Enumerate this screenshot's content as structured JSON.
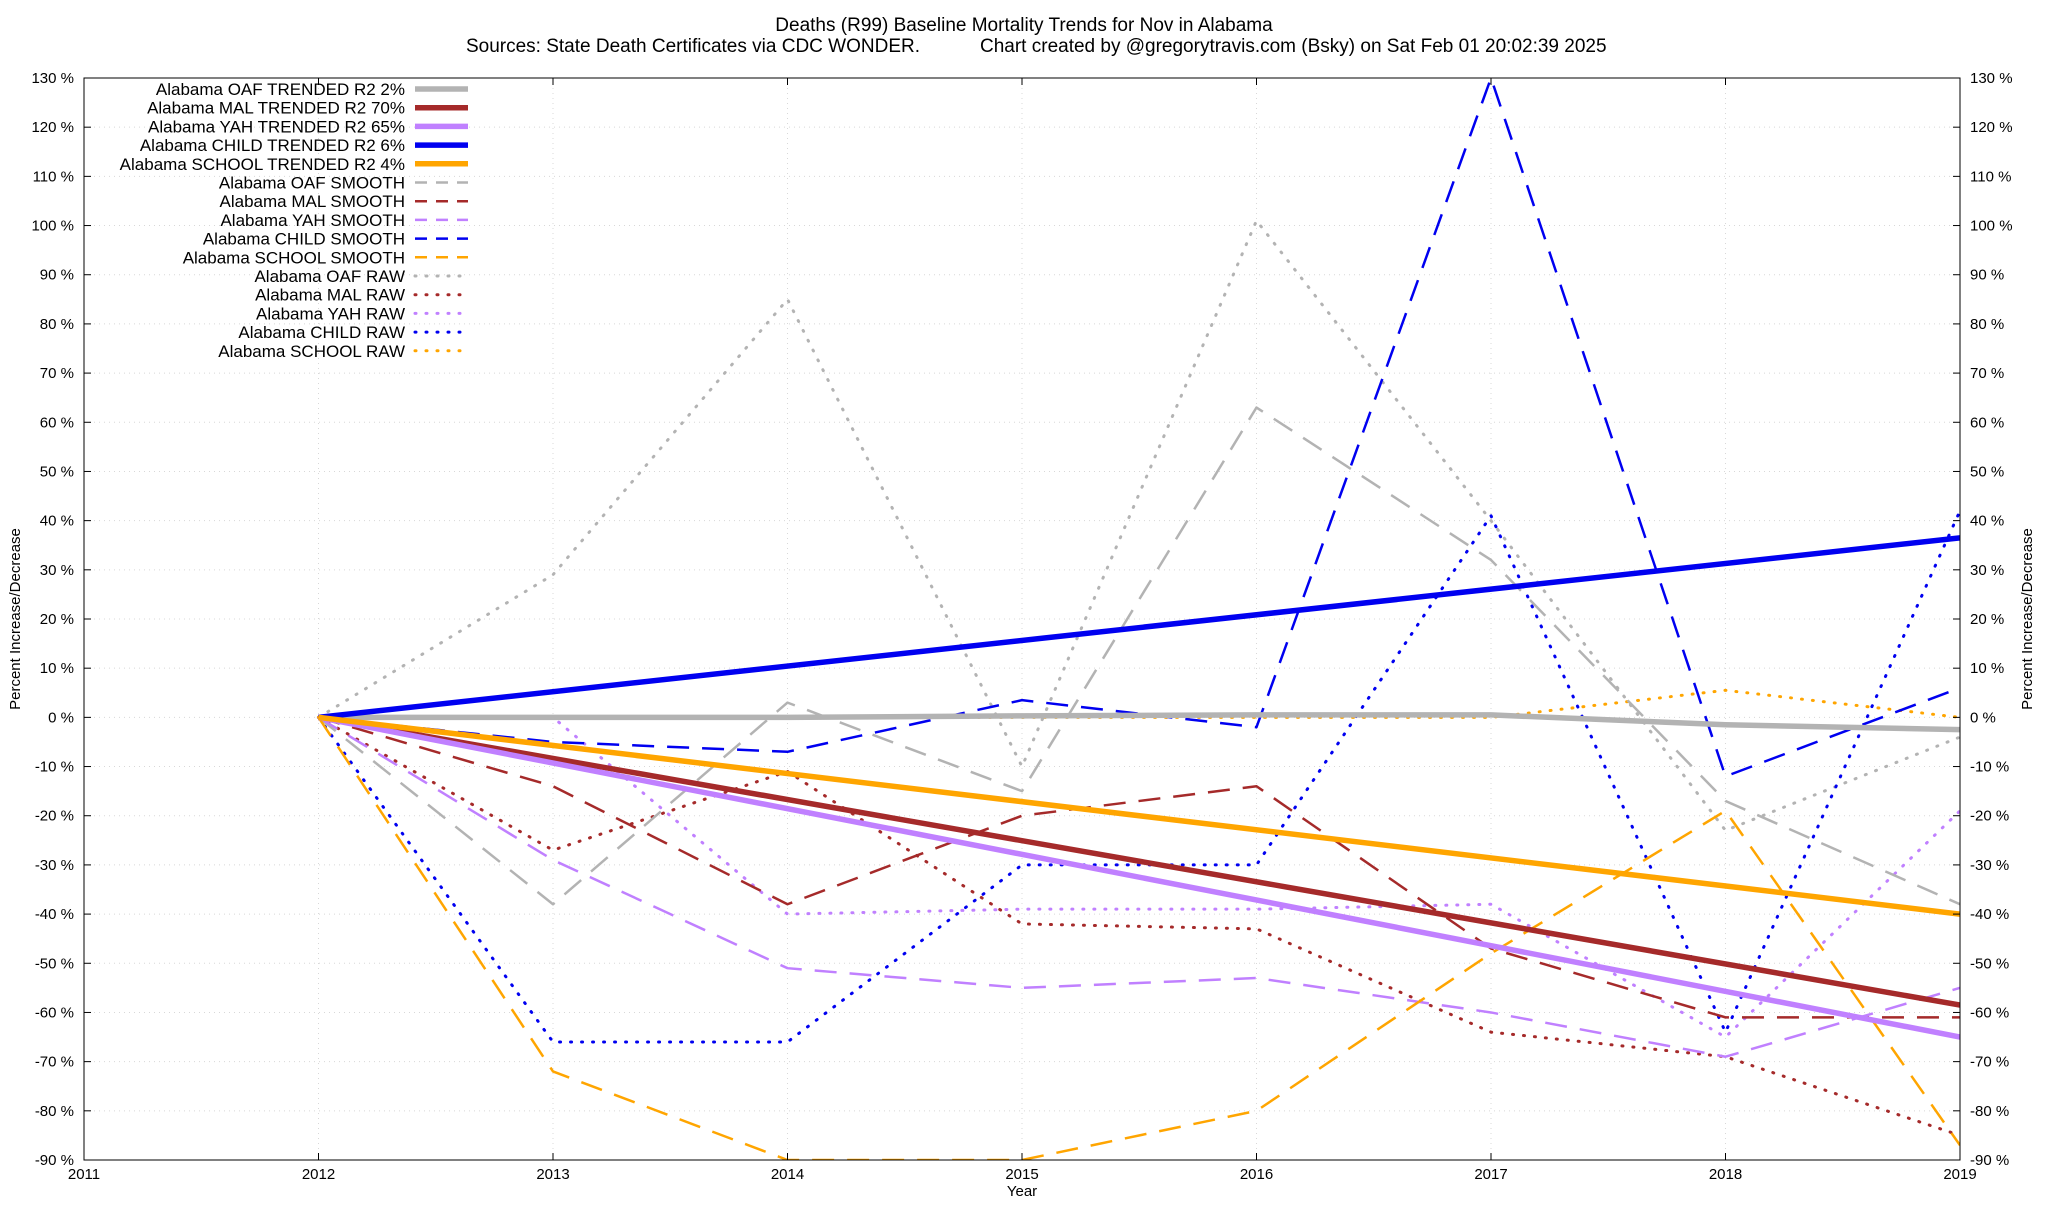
{
  "chart_data": {
    "type": "line",
    "title": "Deaths (R99)  Baseline Mortality Trends for Nov in Alabama",
    "subtitle_left": "Sources: State Death Certificates via CDC WONDER.",
    "subtitle_right": "Chart created by @gregorytravis.com (Bsky) on Sat Feb 01 20:02:39 2025",
    "xlabel": "Year",
    "ylabel": "Percent Increase/Decrease",
    "ylabel_right": "Percent Increase/Decrease",
    "xlim": [
      2011,
      2019
    ],
    "ylim": [
      -90,
      130
    ],
    "x_ticks": [
      2011,
      2012,
      2013,
      2014,
      2015,
      2016,
      2017,
      2018,
      2019
    ],
    "y_ticks": [
      -90,
      -80,
      -70,
      -60,
      -50,
      -40,
      -30,
      -20,
      -10,
      0,
      10,
      20,
      30,
      40,
      50,
      60,
      70,
      80,
      90,
      100,
      110,
      120,
      130
    ],
    "y_tick_suffix": " %",
    "grid": true,
    "legend_position": "top-left",
    "colors": {
      "oaf": "#b3b3b3",
      "mal": "#a52a2a",
      "yah": "#c080ff",
      "child": "#0000f0",
      "school": "#ffa500"
    },
    "series": [
      {
        "name": "Alabama OAF TRENDED R2  2%",
        "style": "trend",
        "color_key": "oaf",
        "x": [
          2012,
          2013,
          2014,
          2015,
          2016,
          2017,
          2018,
          2019
        ],
        "y": [
          0,
          0,
          0,
          0.3,
          0.5,
          0.5,
          -1.5,
          -2.5
        ]
      },
      {
        "name": "Alabama MAL TRENDED R2  70%",
        "style": "trend",
        "color_key": "mal",
        "x": [
          2012,
          2019
        ],
        "y": [
          0,
          -58.5
        ]
      },
      {
        "name": "Alabama YAH TRENDED R2  65%",
        "style": "trend",
        "color_key": "yah",
        "x": [
          2012,
          2019
        ],
        "y": [
          0,
          -65
        ]
      },
      {
        "name": "Alabama CHILD TRENDED R2  6%",
        "style": "trend",
        "color_key": "child",
        "x": [
          2012,
          2019
        ],
        "y": [
          0,
          36.5
        ]
      },
      {
        "name": "Alabama SCHOOL TRENDED R2  4%",
        "style": "trend",
        "color_key": "school",
        "x": [
          2012,
          2019
        ],
        "y": [
          0,
          -40
        ]
      },
      {
        "name": "Alabama OAF SMOOTH",
        "style": "smooth",
        "color_key": "oaf",
        "x": [
          2012,
          2013,
          2014,
          2015,
          2016,
          2017,
          2018,
          2019
        ],
        "y": [
          0,
          -38,
          3,
          -15,
          63,
          32,
          -17,
          -38
        ]
      },
      {
        "name": "Alabama MAL SMOOTH",
        "style": "smooth",
        "color_key": "mal",
        "x": [
          2012,
          2013,
          2014,
          2015,
          2016,
          2017,
          2018,
          2019
        ],
        "y": [
          0,
          -14,
          -38,
          -20,
          -14,
          -47,
          -61,
          -61
        ]
      },
      {
        "name": "Alabama YAH SMOOTH",
        "style": "smooth",
        "color_key": "yah",
        "x": [
          2012,
          2013,
          2014,
          2015,
          2016,
          2017,
          2018,
          2019
        ],
        "y": [
          0,
          -29,
          -51,
          -55,
          -53,
          -60,
          -69,
          -55
        ]
      },
      {
        "name": "Alabama CHILD SMOOTH",
        "style": "smooth",
        "color_key": "child",
        "x": [
          2012,
          2013,
          2014,
          2015,
          2016,
          2017,
          2018,
          2019
        ],
        "y": [
          0,
          -5,
          -7,
          3.5,
          -2,
          130,
          -12,
          6
        ]
      },
      {
        "name": "Alabama SCHOOL SMOOTH",
        "style": "smooth",
        "color_key": "school",
        "x": [
          2012,
          2013,
          2014,
          2015,
          2016,
          2017,
          2018,
          2019
        ],
        "y": [
          0,
          -72,
          -90,
          -90,
          -80,
          -48,
          -19,
          -87
        ]
      },
      {
        "name": "Alabama OAF RAW",
        "style": "raw",
        "color_key": "oaf",
        "x": [
          2012,
          2013,
          2014,
          2015,
          2016,
          2017,
          2018,
          2019
        ],
        "y": [
          0,
          29,
          85,
          -10,
          101,
          40,
          -23,
          -4
        ]
      },
      {
        "name": "Alabama MAL RAW",
        "style": "raw",
        "color_key": "mal",
        "x": [
          2012,
          2013,
          2014,
          2015,
          2016,
          2017,
          2018,
          2019
        ],
        "y": [
          0,
          -27,
          -11,
          -42,
          -43,
          -64,
          -69,
          -85
        ]
      },
      {
        "name": "Alabama YAH RAW",
        "style": "raw",
        "color_key": "yah",
        "x": [
          2012,
          2013,
          2014,
          2015,
          2016,
          2017,
          2018,
          2019
        ],
        "y": [
          0,
          0,
          -40,
          -39,
          -39,
          -38,
          -65,
          -19
        ]
      },
      {
        "name": "Alabama CHILD RAW",
        "style": "raw",
        "color_key": "child",
        "x": [
          2012,
          2013,
          2014,
          2015,
          2016,
          2017,
          2018,
          2019
        ],
        "y": [
          0,
          -66,
          -66,
          -30,
          -30,
          41,
          -64,
          42
        ]
      },
      {
        "name": "Alabama SCHOOL RAW",
        "style": "raw",
        "color_key": "school",
        "x": [
          2012,
          2013,
          2014,
          2015,
          2016,
          2017,
          2018,
          2019
        ],
        "y": [
          0,
          0,
          0,
          0,
          0,
          0,
          5.5,
          0
        ]
      }
    ]
  }
}
